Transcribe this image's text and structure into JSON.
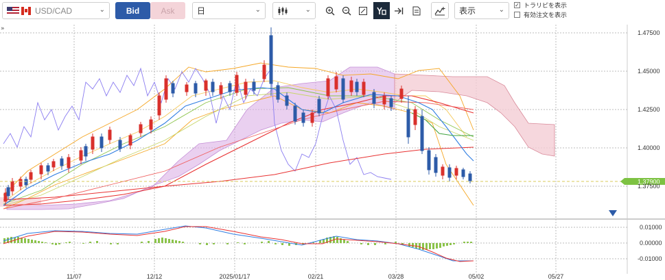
{
  "toolbar": {
    "symbol": "USD/CAD",
    "bid_label": "Bid",
    "ask_label": "Ask",
    "period": "日",
    "display_select": "表示",
    "show_trendline_label": "トラリピを表示",
    "show_active_orders_label": "有効注文を表示",
    "show_trendline_checked": true,
    "show_active_orders_checked": false,
    "icons": [
      "chart-type-icon",
      "zoom-in-icon",
      "zoom-out-icon",
      "fit-icon",
      "cursor-mode-icon",
      "scroll-to-end-icon",
      "document-icon",
      "indicator-add-icon"
    ]
  },
  "price_axis": {
    "ticks": [
      "1.47500",
      "1.45000",
      "1.42500",
      "1.40000",
      "1.37500"
    ],
    "current_price": "1.37900"
  },
  "sub_axis": {
    "ticks": [
      "0.01000",
      "0.00000",
      "-0.01000"
    ]
  },
  "time_axis": {
    "ticks": [
      "11/07",
      "12/12",
      "2025/01/17",
      "02/21",
      "03/28",
      "05/02",
      "05/27"
    ]
  },
  "colors": {
    "accent": "#2d5ba8",
    "price_badge": "#7dc242",
    "cloud": "#d9a7e0",
    "cloud_bear": "#f0c8d0",
    "ma_red": "#e83030",
    "ma_blue": "#2f7de1",
    "bb_orange": "#f5a623",
    "span_purple": "#8a7cf0",
    "up": "#d9302c",
    "down": "#2d5ba8"
  }
}
